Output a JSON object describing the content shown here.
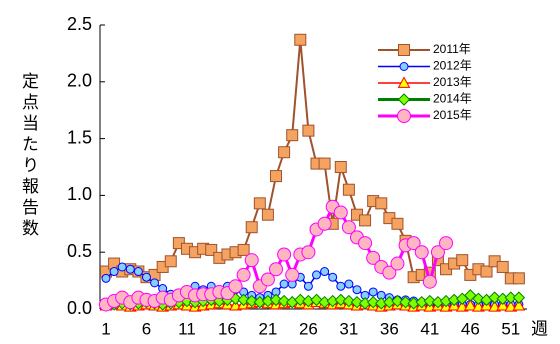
{
  "chart_data": {
    "type": "line",
    "y_label": "定点当たり報告数",
    "x_unit": "週",
    "x": [
      1,
      2,
      3,
      4,
      5,
      6,
      7,
      8,
      9,
      10,
      11,
      12,
      13,
      14,
      15,
      16,
      17,
      18,
      19,
      20,
      21,
      22,
      23,
      24,
      25,
      26,
      27,
      28,
      29,
      30,
      31,
      32,
      33,
      34,
      35,
      36,
      37,
      38,
      39,
      40,
      41,
      42,
      43,
      44,
      45,
      46,
      47,
      48,
      49,
      50,
      51,
      52
    ],
    "xlim": [
      0.26,
      53
    ],
    "xticks": [
      1,
      6,
      11,
      16,
      21,
      26,
      31,
      36,
      41,
      46,
      51
    ],
    "ylim": [
      0,
      2.5
    ],
    "yticks": [
      {
        "value": 0,
        "label": "0.0"
      },
      0.5,
      {
        "value": 1,
        "label": "1.0"
      },
      1.5,
      {
        "value": 2,
        "label": "2.0"
      },
      2.5
    ],
    "grid": false,
    "legend": "upper right",
    "series": [
      {
        "name": "2011年",
        "color": "#a0522d",
        "marker": "square",
        "marker_color": "#f4a460",
        "values": [
          0.33,
          0.4,
          0.33,
          0.35,
          0.33,
          0.28,
          0.3,
          0.37,
          0.42,
          0.58,
          0.53,
          0.5,
          0.53,
          0.52,
          0.45,
          0.48,
          0.5,
          0.52,
          0.72,
          0.93,
          0.83,
          1.17,
          1.38,
          1.53,
          2.37,
          1.57,
          1.28,
          1.28,
          0.75,
          1.25,
          1.05,
          0.83,
          0.78,
          0.95,
          0.93,
          0.8,
          0.75,
          0.6,
          0.28,
          0.3,
          0.32,
          0.43,
          0.35,
          0.4,
          0.43,
          0.3,
          0.35,
          0.33,
          0.42,
          0.37,
          0.27,
          0.27
        ]
      },
      {
        "name": "2012年",
        "color": "#0000ff",
        "marker": "circle",
        "marker_color": "#87cefa",
        "values": [
          0.27,
          0.33,
          0.37,
          0.35,
          0.33,
          0.28,
          0.23,
          0.18,
          0.13,
          0.1,
          0.12,
          0.2,
          0.17,
          0.2,
          0.15,
          0.2,
          0.17,
          0.15,
          0.12,
          0.1,
          0.12,
          0.15,
          0.22,
          0.22,
          0.28,
          0.2,
          0.3,
          0.33,
          0.28,
          0.2,
          0.22,
          0.17,
          0.12,
          0.15,
          0.12,
          0.1,
          0.08,
          0.08,
          0.07,
          0.06,
          0.05,
          0.04,
          0.04,
          0.04,
          0.04,
          0.04,
          0.04,
          0.04,
          0.04,
          0.04,
          0.04,
          0.04
        ]
      },
      {
        "name": "2013年",
        "color": "#ff0000",
        "marker": "triangle",
        "marker_color": "#ffff00",
        "values": [
          0.03,
          0.04,
          0.03,
          0.02,
          0.03,
          0.04,
          0.03,
          0.02,
          0.03,
          0.04,
          0.03,
          0.02,
          0.03,
          0.04,
          0.05,
          0.04,
          0.03,
          0.04,
          0.05,
          0.06,
          0.05,
          0.04,
          0.05,
          0.06,
          0.05,
          0.04,
          0.06,
          0.05,
          0.04,
          0.05,
          0.04,
          0.03,
          0.04,
          0.03,
          0.02,
          0.03,
          0.04,
          0.03,
          0.02,
          0.03,
          0.02,
          0.03,
          0.02,
          0.03,
          0.02,
          0.03,
          0.02,
          0.03,
          0.02,
          0.03,
          0.02,
          0.03
        ]
      },
      {
        "name": "2014年",
        "color": "#008000",
        "marker": "diamond",
        "marker_color": "#7fff00",
        "values": [
          0.03,
          0.04,
          0.05,
          0.04,
          0.05,
          0.06,
          0.05,
          0.04,
          0.05,
          0.06,
          0.07,
          0.06,
          0.07,
          0.08,
          0.07,
          0.08,
          0.09,
          0.08,
          0.07,
          0.06,
          0.07,
          0.08,
          0.07,
          0.06,
          0.08,
          0.07,
          0.08,
          0.06,
          0.07,
          0.08,
          0.07,
          0.06,
          0.05,
          0.06,
          0.05,
          0.06,
          0.07,
          0.06,
          0.05,
          0.06,
          0.07,
          0.06,
          0.07,
          0.08,
          0.09,
          0.12,
          0.09,
          0.08,
          0.1,
          0.09,
          0.1,
          0.1
        ]
      },
      {
        "name": "2015年",
        "color": "#ff00ff",
        "marker": "circle",
        "marker_color": "#ffb6c1",
        "values": [
          0.04,
          0.07,
          0.1,
          0.06,
          0.1,
          0.08,
          0.07,
          0.1,
          0.08,
          0.12,
          0.15,
          0.12,
          0.13,
          0.13,
          0.15,
          0.14,
          0.2,
          0.3,
          0.43,
          0.2,
          0.26,
          0.35,
          0.48,
          0.3,
          0.48,
          0.5,
          0.7,
          0.75,
          0.9,
          0.85,
          0.72,
          0.63,
          0.58,
          0.45,
          0.37,
          0.32,
          0.4,
          0.56,
          0.58,
          0.5,
          0.24,
          0.5,
          0.58,
          null,
          null,
          null,
          null,
          null,
          null,
          null,
          null,
          null
        ]
      }
    ]
  }
}
